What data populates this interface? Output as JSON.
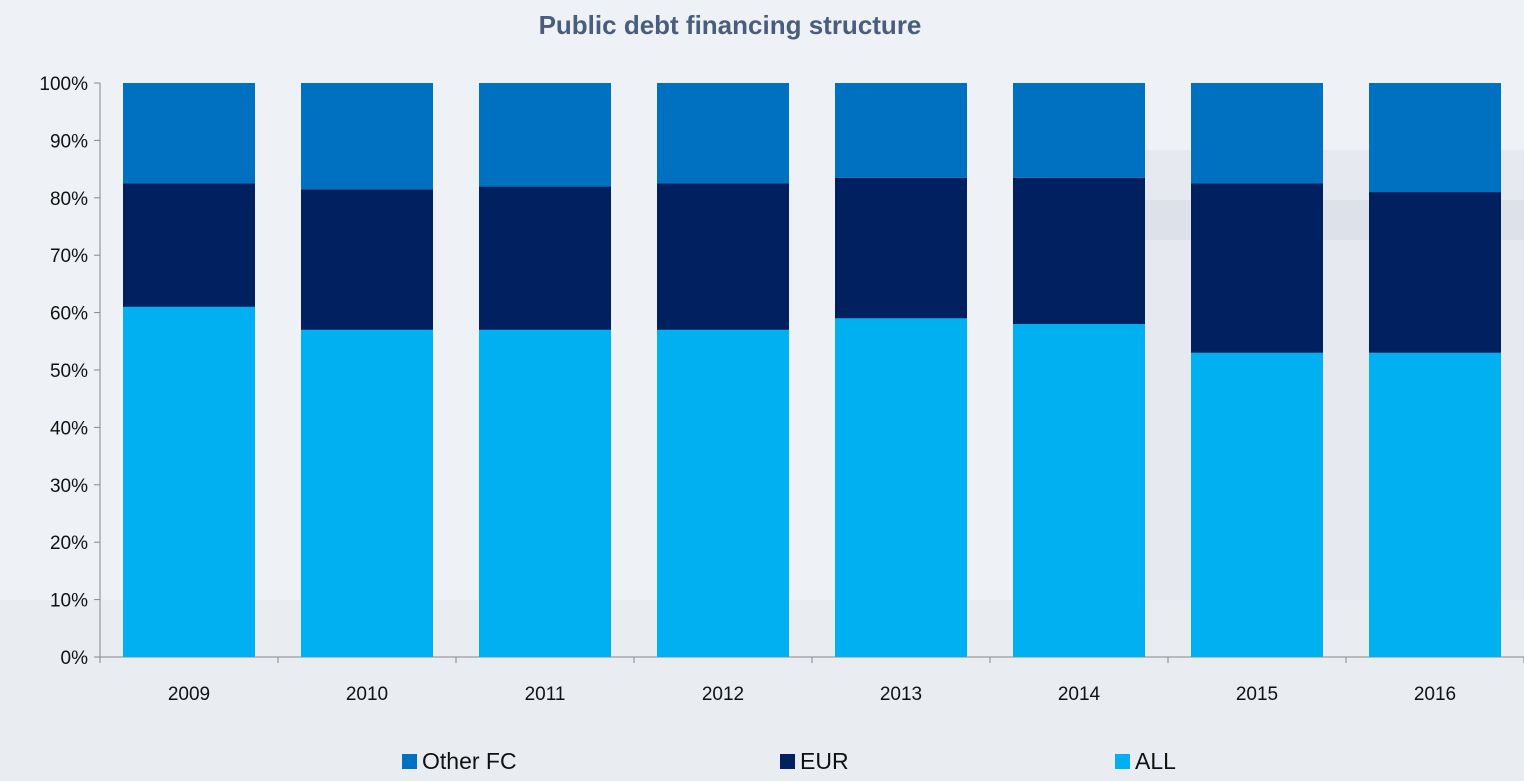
{
  "chart_data": {
    "type": "bar",
    "stacked": true,
    "title": "Public debt financing structure",
    "categories": [
      "2009",
      "2010",
      "2011",
      "2012",
      "2013",
      "2014",
      "2015",
      "2016"
    ],
    "series": [
      {
        "name": "ALL",
        "color": "#00b0f0",
        "values": [
          61,
          57,
          57,
          57,
          59,
          58,
          53,
          53
        ]
      },
      {
        "name": "EUR",
        "color": "#002060",
        "values": [
          21.5,
          24.5,
          25,
          25.5,
          24.5,
          25.5,
          29.5,
          28
        ]
      },
      {
        "name": "Other FC",
        "color": "#0070c0",
        "values": [
          17.5,
          18.5,
          18,
          17.5,
          16.5,
          16.5,
          17.5,
          19
        ]
      }
    ],
    "ylim": [
      0,
      100
    ],
    "yticks": [
      "0%",
      "10%",
      "20%",
      "30%",
      "40%",
      "50%",
      "60%",
      "70%",
      "80%",
      "90%",
      "100%"
    ],
    "legend_order": [
      "Other FC",
      "EUR",
      "ALL"
    ],
    "legend_position": "bottom",
    "grid": false
  }
}
